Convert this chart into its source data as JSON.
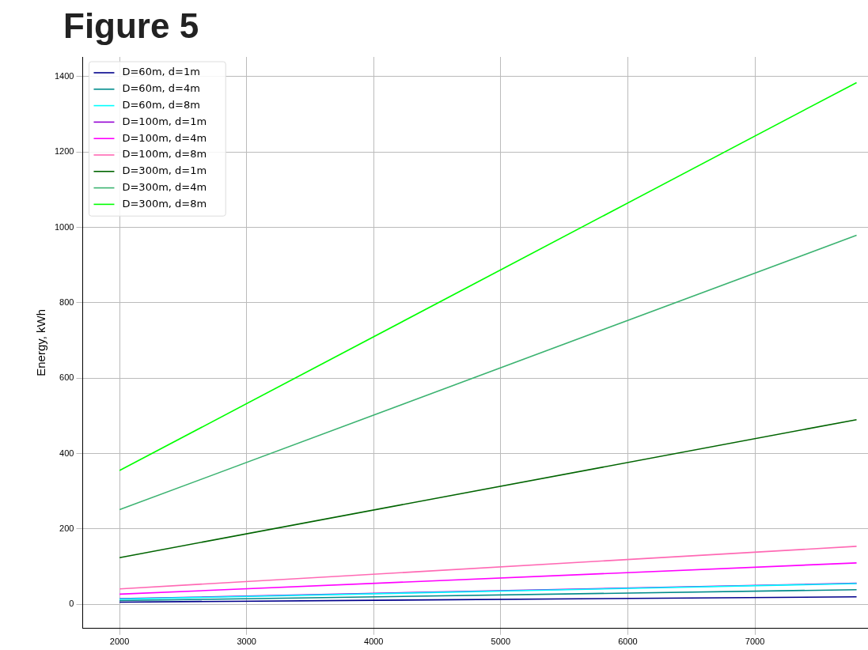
{
  "chart_data": {
    "type": "line",
    "title": "Figure 5",
    "ylabel": "Energy, kWh",
    "x": [
      2000,
      7800
    ],
    "xlim": [
      1710,
      7890
    ],
    "xticks": [
      2000,
      3000,
      4000,
      5000,
      6000,
      7000
    ],
    "ylim": [
      -64,
      1452
    ],
    "yticks": [
      0,
      200,
      400,
      600,
      800,
      1000,
      1200,
      1400
    ],
    "grid": true,
    "legend": "top left",
    "marker": "none",
    "line_style": "solid",
    "series": [
      {
        "name": "D=60m, d=1m",
        "color": "#00008b",
        "values": [
          6,
          20
        ]
      },
      {
        "name": "D=60m, d=4m",
        "color": "#008b8b",
        "values": [
          10,
          39
        ]
      },
      {
        "name": "D=60m, d=8m",
        "color": "#00ffff",
        "values": [
          14,
          55
        ]
      },
      {
        "name": "D=100m, d=1m",
        "color": "#9400d3",
        "values": [
          15,
          56
        ]
      },
      {
        "name": "D=100m, d=4m",
        "color": "#ff00ff",
        "values": [
          27,
          110
        ]
      },
      {
        "name": "D=100m, d=8m",
        "color": "#ff69b4",
        "values": [
          41,
          154
        ]
      },
      {
        "name": "D=300m, d=1m",
        "color": "#006400",
        "values": [
          124,
          490
        ]
      },
      {
        "name": "D=300m, d=4m",
        "color": "#3cb371",
        "values": [
          251,
          979
        ]
      },
      {
        "name": "D=300m, d=8m",
        "color": "#00ff00",
        "values": [
          355,
          1384
        ]
      }
    ]
  }
}
